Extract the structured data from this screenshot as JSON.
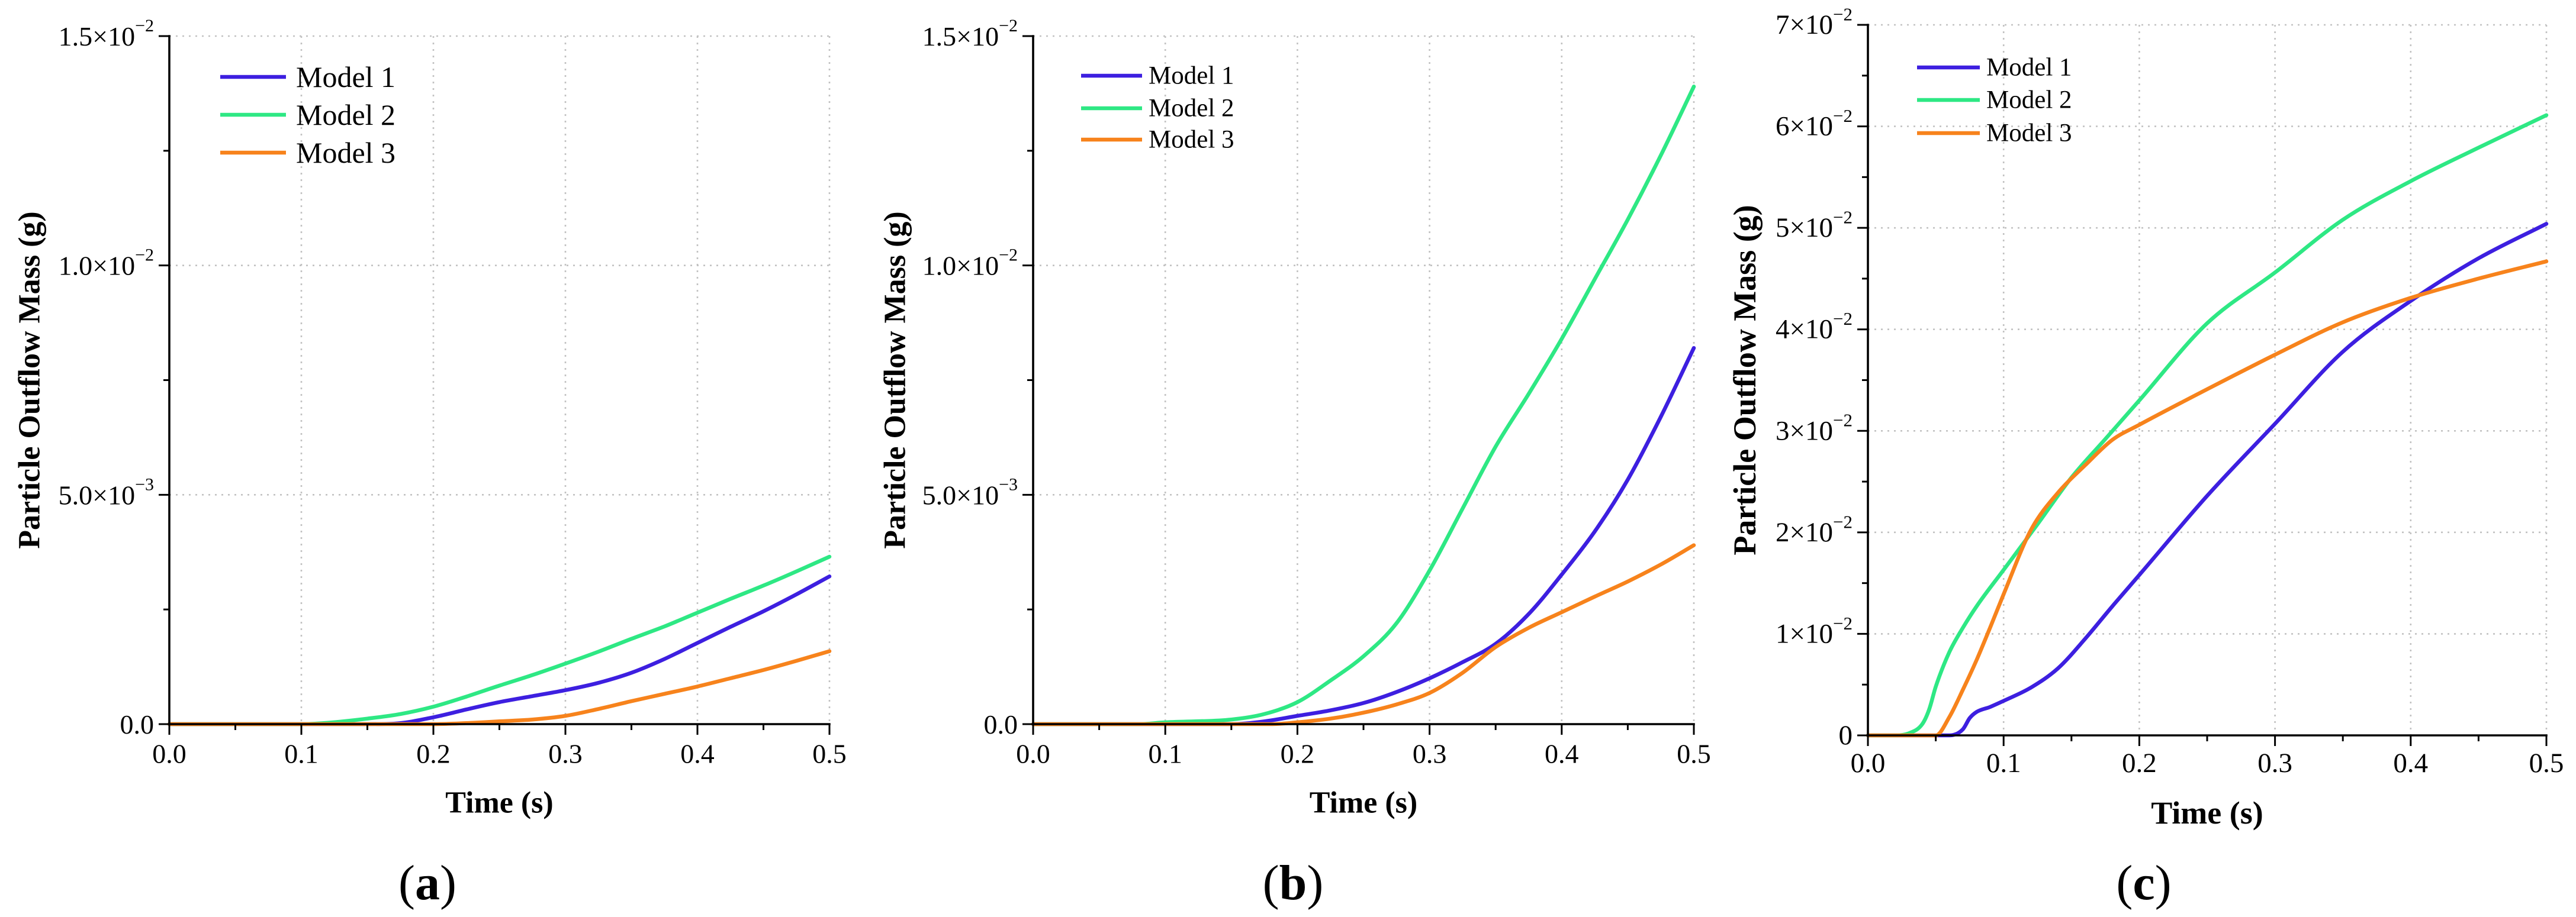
{
  "chart_data": [
    {
      "type": "line",
      "caption": "(a)",
      "xlabel": "Time (s)",
      "ylabel": "Particle Outflow Mass (g)",
      "xlim": [
        0,
        0.5
      ],
      "ylim": [
        0,
        0.015
      ],
      "grid": true,
      "legend_position": "top-left",
      "x_ticks": [
        {
          "value": 0,
          "label": "0.0"
        },
        {
          "value": 0.1,
          "label": "0.1"
        },
        {
          "value": 0.2,
          "label": "0.2"
        },
        {
          "value": 0.3,
          "label": "0.3"
        },
        {
          "value": 0.4,
          "label": "0.4"
        },
        {
          "value": 0.5,
          "label": "0.5"
        }
      ],
      "y_ticks": [
        {
          "value": 0,
          "label": "0.0"
        },
        {
          "value": 0.005,
          "label": "5.0×10",
          "sup": "−3"
        },
        {
          "value": 0.01,
          "label": "1.0×10",
          "sup": "−2"
        },
        {
          "value": 0.015,
          "label": "1.5×10",
          "sup": "−2"
        }
      ],
      "series": [
        {
          "name": "Model 1",
          "color": "#3d1fe0",
          "points": [
            [
              0,
              0
            ],
            [
              0.15,
              0
            ],
            [
              0.17,
              1e-05
            ],
            [
              0.2,
              0.00015
            ],
            [
              0.225,
              0.00032
            ],
            [
              0.25,
              0.00048
            ],
            [
              0.275,
              0.00061
            ],
            [
              0.3,
              0.00074
            ],
            [
              0.325,
              0.0009
            ],
            [
              0.35,
              0.00112
            ],
            [
              0.375,
              0.00142
            ],
            [
              0.4,
              0.00177
            ],
            [
              0.425,
              0.00212
            ],
            [
              0.45,
              0.00246
            ],
            [
              0.475,
              0.00283
            ],
            [
              0.5,
              0.00322
            ]
          ]
        },
        {
          "name": "Model 2",
          "color": "#2ee884",
          "points": [
            [
              0,
              0
            ],
            [
              0.1,
              0
            ],
            [
              0.12,
              3e-05
            ],
            [
              0.15,
              0.00012
            ],
            [
              0.175,
              0.00022
            ],
            [
              0.2,
              0.00038
            ],
            [
              0.225,
              0.0006
            ],
            [
              0.25,
              0.00084
            ],
            [
              0.275,
              0.00107
            ],
            [
              0.3,
              0.00132
            ],
            [
              0.325,
              0.00158
            ],
            [
              0.35,
              0.00186
            ],
            [
              0.375,
              0.00213
            ],
            [
              0.4,
              0.00243
            ],
            [
              0.425,
              0.00273
            ],
            [
              0.45,
              0.00302
            ],
            [
              0.475,
              0.00333
            ],
            [
              0.5,
              0.00365
            ]
          ]
        },
        {
          "name": "Model 3",
          "color": "#f7831c",
          "points": [
            [
              0,
              0
            ],
            [
              0.2,
              0
            ],
            [
              0.23,
              3e-05
            ],
            [
              0.25,
              6e-05
            ],
            [
              0.275,
              0.0001
            ],
            [
              0.3,
              0.00018
            ],
            [
              0.325,
              0.00033
            ],
            [
              0.35,
              0.0005
            ],
            [
              0.375,
              0.00066
            ],
            [
              0.4,
              0.00082
            ],
            [
              0.425,
              0.001
            ],
            [
              0.45,
              0.00118
            ],
            [
              0.475,
              0.00138
            ],
            [
              0.5,
              0.00159
            ]
          ]
        }
      ]
    },
    {
      "type": "line",
      "caption": "(b)",
      "xlabel": "Time (s)",
      "ylabel": "Particle Outflow Mass (g)",
      "xlim": [
        0,
        0.5
      ],
      "ylim": [
        0,
        0.015
      ],
      "grid": true,
      "legend_position": "top-left",
      "x_ticks": [
        {
          "value": 0,
          "label": "0.0"
        },
        {
          "value": 0.1,
          "label": "0.1"
        },
        {
          "value": 0.2,
          "label": "0.2"
        },
        {
          "value": 0.3,
          "label": "0.3"
        },
        {
          "value": 0.4,
          "label": "0.4"
        },
        {
          "value": 0.5,
          "label": "0.5"
        }
      ],
      "y_ticks": [
        {
          "value": 0,
          "label": "0.0"
        },
        {
          "value": 0.005,
          "label": "5.0×10",
          "sup": "−3"
        },
        {
          "value": 0.01,
          "label": "1.0×10",
          "sup": "−2"
        },
        {
          "value": 0.015,
          "label": "1.5×10",
          "sup": "−2"
        }
      ],
      "series": [
        {
          "name": "Model 1",
          "color": "#3d1fe0",
          "points": [
            [
              0,
              0
            ],
            [
              0.15,
              0
            ],
            [
              0.175,
              6e-05
            ],
            [
              0.2,
              0.00018
            ],
            [
              0.225,
              0.0003
            ],
            [
              0.25,
              0.00046
            ],
            [
              0.275,
              0.0007
            ],
            [
              0.3,
              0.001
            ],
            [
              0.325,
              0.00135
            ],
            [
              0.35,
              0.00175
            ],
            [
              0.375,
              0.0024
            ],
            [
              0.4,
              0.00326
            ],
            [
              0.425,
              0.0042
            ],
            [
              0.45,
              0.00533
            ],
            [
              0.475,
              0.0067
            ],
            [
              0.5,
              0.0082
            ]
          ]
        },
        {
          "name": "Model 2",
          "color": "#2ee884",
          "points": [
            [
              0,
              0
            ],
            [
              0.08,
              0
            ],
            [
              0.1,
              4e-05
            ],
            [
              0.15,
              0.0001
            ],
            [
              0.175,
              0.00022
            ],
            [
              0.2,
              0.00048
            ],
            [
              0.225,
              0.00095
            ],
            [
              0.25,
              0.00148
            ],
            [
              0.275,
              0.0022
            ],
            [
              0.3,
              0.00335
            ],
            [
              0.325,
              0.0047
            ],
            [
              0.35,
              0.00605
            ],
            [
              0.375,
              0.0072
            ],
            [
              0.4,
              0.0084
            ],
            [
              0.425,
              0.0097
            ],
            [
              0.45,
              0.011
            ],
            [
              0.475,
              0.0124
            ],
            [
              0.5,
              0.0139
            ]
          ]
        },
        {
          "name": "Model 3",
          "color": "#f7831c",
          "points": [
            [
              0,
              0
            ],
            [
              0.18,
              0
            ],
            [
              0.2,
              4e-05
            ],
            [
              0.225,
              0.00012
            ],
            [
              0.25,
              0.00025
            ],
            [
              0.275,
              0.00043
            ],
            [
              0.3,
              0.00068
            ],
            [
              0.325,
              0.00112
            ],
            [
              0.35,
              0.00168
            ],
            [
              0.375,
              0.0021
            ],
            [
              0.4,
              0.00244
            ],
            [
              0.425,
              0.00278
            ],
            [
              0.45,
              0.00311
            ],
            [
              0.475,
              0.00348
            ],
            [
              0.5,
              0.0039
            ]
          ]
        }
      ]
    },
    {
      "type": "line",
      "caption": "(c)",
      "xlabel": "Time (s)",
      "ylabel": "Particle Outflow Mass (g)",
      "xlim": [
        0,
        0.5
      ],
      "ylim": [
        0,
        0.07
      ],
      "grid": true,
      "legend_position": "top-left",
      "x_ticks": [
        {
          "value": 0,
          "label": "0.0"
        },
        {
          "value": 0.1,
          "label": "0.1"
        },
        {
          "value": 0.2,
          "label": "0.2"
        },
        {
          "value": 0.3,
          "label": "0.3"
        },
        {
          "value": 0.4,
          "label": "0.4"
        },
        {
          "value": 0.5,
          "label": "0.5"
        }
      ],
      "y_ticks": [
        {
          "value": 0,
          "label": "0"
        },
        {
          "value": 0.01,
          "label": "1×10",
          "sup": "−2"
        },
        {
          "value": 0.02,
          "label": "2×10",
          "sup": "−2"
        },
        {
          "value": 0.03,
          "label": "3×10",
          "sup": "−2"
        },
        {
          "value": 0.04,
          "label": "4×10",
          "sup": "−2"
        },
        {
          "value": 0.05,
          "label": "5×10",
          "sup": "−2"
        },
        {
          "value": 0.06,
          "label": "6×10",
          "sup": "−2"
        },
        {
          "value": 0.07,
          "label": "7×10",
          "sup": "−2"
        }
      ],
      "series": [
        {
          "name": "Model 1",
          "color": "#3d1fe0",
          "points": [
            [
              0,
              0
            ],
            [
              0.06,
              0
            ],
            [
              0.07,
              0.0006
            ],
            [
              0.075,
              0.0017
            ],
            [
              0.08,
              0.0023
            ],
            [
              0.09,
              0.0028
            ],
            [
              0.1,
              0.0034
            ],
            [
              0.12,
              0.0047
            ],
            [
              0.14,
              0.0066
            ],
            [
              0.16,
              0.0095
            ],
            [
              0.18,
              0.0127
            ],
            [
              0.2,
              0.0158
            ],
            [
              0.25,
              0.0236
            ],
            [
              0.3,
              0.0307
            ],
            [
              0.35,
              0.0378
            ],
            [
              0.4,
              0.0428
            ],
            [
              0.45,
              0.047
            ],
            [
              0.5,
              0.0504
            ]
          ]
        },
        {
          "name": "Model 2",
          "color": "#2ee884",
          "points": [
            [
              0,
              0
            ],
            [
              0.02,
              0
            ],
            [
              0.03,
              0.0002
            ],
            [
              0.04,
              0.0011
            ],
            [
              0.045,
              0.0025
            ],
            [
              0.05,
              0.0048
            ],
            [
              0.06,
              0.0082
            ],
            [
              0.07,
              0.0106
            ],
            [
              0.08,
              0.0127
            ],
            [
              0.1,
              0.0163
            ],
            [
              0.125,
              0.0208
            ],
            [
              0.15,
              0.0254
            ],
            [
              0.175,
              0.0292
            ],
            [
              0.2,
              0.033
            ],
            [
              0.25,
              0.0406
            ],
            [
              0.3,
              0.0456
            ],
            [
              0.35,
              0.0508
            ],
            [
              0.4,
              0.0546
            ],
            [
              0.45,
              0.0579
            ],
            [
              0.5,
              0.0611
            ]
          ]
        },
        {
          "name": "Model 3",
          "color": "#f7831c",
          "points": [
            [
              0,
              0
            ],
            [
              0.05,
              0
            ],
            [
              0.06,
              0.0018
            ],
            [
              0.07,
              0.0045
            ],
            [
              0.08,
              0.0074
            ],
            [
              0.09,
              0.0106
            ],
            [
              0.1,
              0.0139
            ],
            [
              0.12,
              0.0202
            ],
            [
              0.14,
              0.0239
            ],
            [
              0.16,
              0.0266
            ],
            [
              0.18,
              0.0291
            ],
            [
              0.2,
              0.0306
            ],
            [
              0.25,
              0.0341
            ],
            [
              0.3,
              0.0375
            ],
            [
              0.35,
              0.0407
            ],
            [
              0.4,
              0.0431
            ],
            [
              0.45,
              0.045
            ],
            [
              0.5,
              0.0467
            ]
          ]
        }
      ]
    }
  ]
}
